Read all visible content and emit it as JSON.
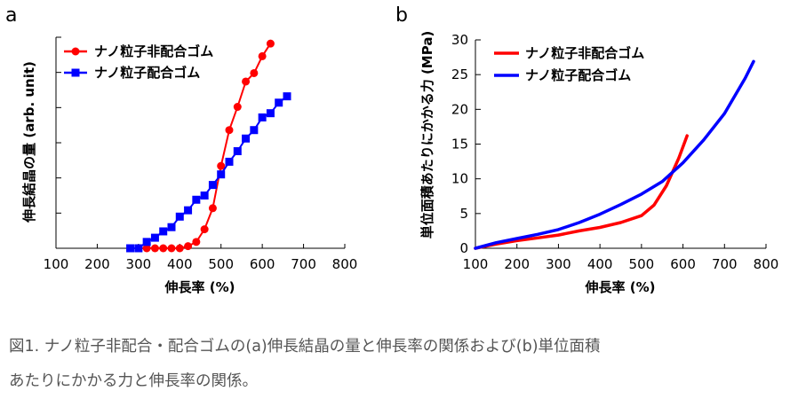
{
  "colors": {
    "red": "#ff0000",
    "blue": "#0000ff",
    "axis": "#000000"
  },
  "caption": {
    "line1": "図1. ナノ粒子非配合・配合ゴムの(a)伸長結晶の量と伸長率の関係および(b)単位面積",
    "line2": "あたりにかかる力と伸長率の関係。"
  },
  "chart_data": [
    {
      "panel": "a",
      "type": "line",
      "title": "",
      "xlabel": "伸長率 (%)",
      "ylabel": "伸長結晶の量 (arb. unit)",
      "xlim": [
        100,
        800
      ],
      "ylim": [
        0,
        1
      ],
      "x_ticks": [
        "100",
        "200",
        "300",
        "400",
        "500",
        "600",
        "700",
        "800"
      ],
      "y_ticks_count": 7,
      "legend_position": "top-left",
      "series": [
        {
          "name": "ナノ粒子非配合ゴム",
          "color": "#ff0000",
          "marker": "circle",
          "x": [
            300,
            320,
            340,
            360,
            380,
            400,
            420,
            440,
            460,
            480,
            500,
            520,
            540,
            560,
            580,
            600,
            620
          ],
          "y": [
            0.0,
            0.0,
            0.0,
            0.0,
            0.0,
            0.0,
            0.01,
            0.03,
            0.09,
            0.19,
            0.39,
            0.56,
            0.67,
            0.79,
            0.83,
            0.91,
            0.97
          ]
        },
        {
          "name": "ナノ粒子配合ゴム",
          "color": "#0000ff",
          "marker": "square",
          "x": [
            280,
            300,
            320,
            340,
            360,
            380,
            400,
            420,
            440,
            460,
            480,
            500,
            520,
            540,
            560,
            580,
            600,
            620,
            640,
            660
          ],
          "y": [
            0.0,
            0.0,
            0.03,
            0.05,
            0.08,
            0.1,
            0.15,
            0.18,
            0.23,
            0.25,
            0.3,
            0.35,
            0.41,
            0.46,
            0.52,
            0.56,
            0.62,
            0.64,
            0.69,
            0.72
          ]
        }
      ]
    },
    {
      "panel": "b",
      "type": "line",
      "title": "",
      "xlabel": "伸長率 (%)",
      "ylabel": "単位面積あたりにかかる力 (MPa)",
      "xlim": [
        100,
        800
      ],
      "ylim": [
        0,
        30
      ],
      "x_ticks": [
        "100",
        "200",
        "300",
        "400",
        "500",
        "600",
        "700",
        "800"
      ],
      "y_ticks": [
        "0",
        "5",
        "10",
        "15",
        "20",
        "25",
        "30"
      ],
      "legend_position": "top-left",
      "series": [
        {
          "name": "ナノ粒子非配合ゴム",
          "color": "#ff0000",
          "x": [
            100,
            150,
            200,
            250,
            300,
            350,
            400,
            450,
            500,
            530,
            560,
            590,
            610
          ],
          "y": [
            0.0,
            0.6,
            1.1,
            1.5,
            1.9,
            2.5,
            3.0,
            3.7,
            4.7,
            6.2,
            9.0,
            13.0,
            16.2
          ]
        },
        {
          "name": "ナノ粒子配合ゴム",
          "color": "#0000ff",
          "x": [
            100,
            150,
            200,
            250,
            300,
            350,
            400,
            450,
            500,
            550,
            600,
            650,
            700,
            750,
            770
          ],
          "y": [
            0.0,
            0.8,
            1.4,
            2.0,
            2.7,
            3.7,
            4.9,
            6.3,
            7.8,
            9.6,
            12.3,
            15.6,
            19.4,
            24.5,
            26.9
          ]
        }
      ]
    }
  ]
}
